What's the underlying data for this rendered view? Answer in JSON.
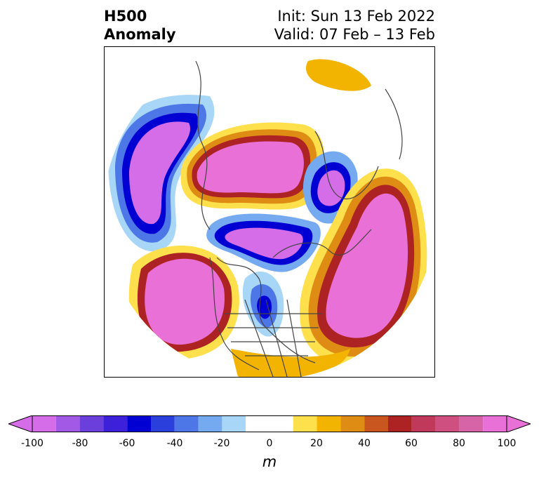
{
  "header": {
    "title_line1": "H500",
    "title_line2": "Anomaly",
    "init_line": "Init: Sun 13 Feb 2022",
    "valid_line": "Valid: 07 Feb – 13 Feb"
  },
  "colorbar": {
    "unit": "m",
    "ticks": [
      "-100",
      "-80",
      "-60",
      "-40",
      "-20",
      "0",
      "20",
      "40",
      "60",
      "80",
      "100"
    ],
    "bins": [
      {
        "from": -100,
        "to": -90,
        "color": "#d66de8"
      },
      {
        "from": -90,
        "to": -80,
        "color": "#a25ae6"
      },
      {
        "from": -80,
        "to": -70,
        "color": "#6a3fdc"
      },
      {
        "from": -70,
        "to": -60,
        "color": "#3d20d9"
      },
      {
        "from": -60,
        "to": -50,
        "color": "#0000d2"
      },
      {
        "from": -50,
        "to": -40,
        "color": "#2a3fdc"
      },
      {
        "from": -40,
        "to": -30,
        "color": "#4d76e6"
      },
      {
        "from": -30,
        "to": -20,
        "color": "#76aaf0"
      },
      {
        "from": -20,
        "to": -10,
        "color": "#a8d6f7"
      },
      {
        "from": -10,
        "to": 10,
        "color": "#ffffff"
      },
      {
        "from": 10,
        "to": 20,
        "color": "#fde04c"
      },
      {
        "from": 20,
        "to": 30,
        "color": "#f2b400"
      },
      {
        "from": 30,
        "to": 40,
        "color": "#df8c14"
      },
      {
        "from": 40,
        "to": 50,
        "color": "#c8561e"
      },
      {
        "from": 50,
        "to": 60,
        "color": "#ad2323"
      },
      {
        "from": 60,
        "to": 70,
        "color": "#c0385a"
      },
      {
        "from": 70,
        "to": 80,
        "color": "#cf5080"
      },
      {
        "from": 80,
        "to": 90,
        "color": "#d864a8"
      },
      {
        "from": 90,
        "to": 100,
        "color": "#e870d6"
      }
    ],
    "under_color": "#d66de8",
    "over_color": "#e870d6"
  },
  "map": {
    "projection": "north-polar-stereographic",
    "anomalies": [
      {
        "region": "north-pacific",
        "sign": "negative",
        "peak_m": -100
      },
      {
        "region": "central-asia",
        "sign": "positive",
        "peak_m": 100
      },
      {
        "region": "europe",
        "sign": "negative",
        "peak_m": -70
      },
      {
        "region": "north-atlantic",
        "sign": "positive",
        "peak_m": 100
      },
      {
        "region": "northeast-pacific",
        "sign": "positive",
        "peak_m": 100
      },
      {
        "region": "central-north-america",
        "sign": "negative",
        "peak_m": -70
      },
      {
        "region": "arctic",
        "sign": "negative",
        "peak_m": -100
      }
    ]
  }
}
